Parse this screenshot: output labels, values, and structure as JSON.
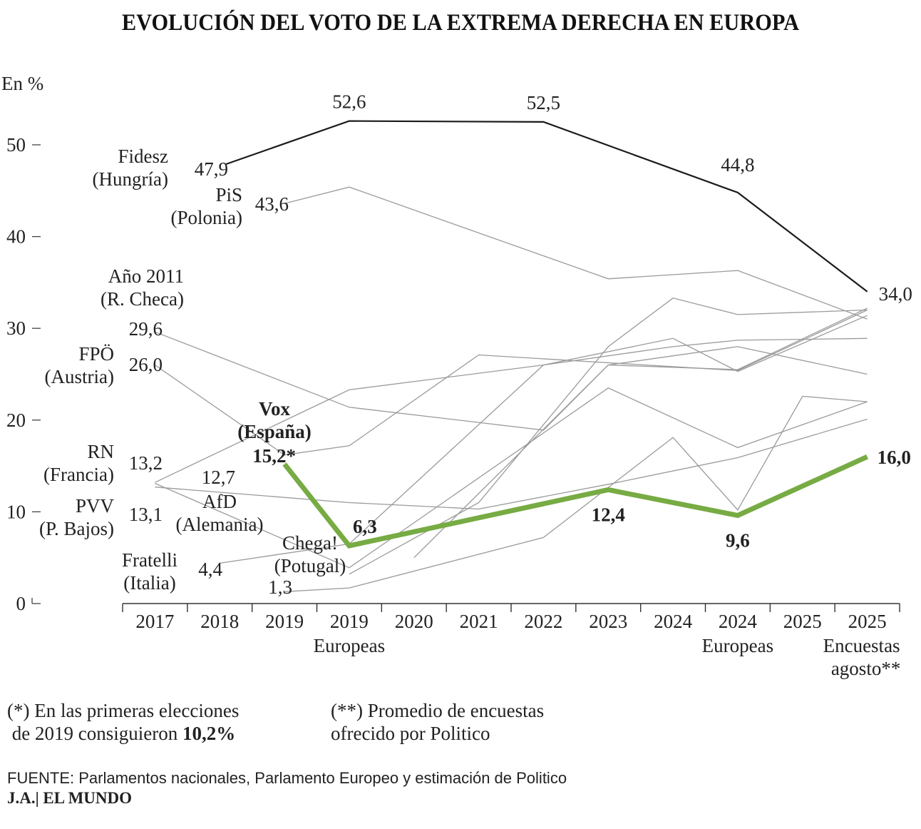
{
  "title": "EVOLUCIÓN DEL VOTO DE LA EXTREMA DERECHA EN EUROPA",
  "colors": {
    "highlight": "#77ab43",
    "main_line": "#1a1a1a",
    "other_lines": "#9a9a9a",
    "text": "#222222"
  },
  "chart_data": {
    "type": "line",
    "ylabel": "En %",
    "ylim": [
      0,
      55
    ],
    "yticks": [
      "0",
      "10",
      "20",
      "30",
      "40",
      "50"
    ],
    "categories": [
      {
        "label": "2017",
        "sub": ""
      },
      {
        "label": "2018",
        "sub": ""
      },
      {
        "label": "2019",
        "sub": ""
      },
      {
        "label": "2019",
        "sub": "Europeas"
      },
      {
        "label": "2020",
        "sub": ""
      },
      {
        "label": "2021",
        "sub": ""
      },
      {
        "label": "2022",
        "sub": ""
      },
      {
        "label": "2023",
        "sub": ""
      },
      {
        "label": "2024",
        "sub": ""
      },
      {
        "label": "2024",
        "sub": "Europeas"
      },
      {
        "label": "2025",
        "sub": ""
      },
      {
        "label": "2025",
        "sub": "Encuestas agosto**"
      }
    ],
    "series": [
      {
        "name": "Fidesz (Hungría)",
        "name_lines": [
          "Fidesz",
          "(Hungría)"
        ],
        "style": "main",
        "points": [
          [
            1.6,
            47.9
          ],
          [
            3.5,
            52.6
          ],
          [
            6.5,
            52.5
          ],
          [
            9.5,
            44.8
          ],
          [
            11.5,
            34.0
          ]
        ],
        "start_label": "47,9",
        "value_labels": [
          {
            "i": 1,
            "text": "52,6"
          },
          {
            "i": 2,
            "text": "52,5"
          },
          {
            "i": 3,
            "text": "44,8"
          },
          {
            "i": 4,
            "text": "34,0"
          }
        ]
      },
      {
        "name": "PiS (Polonia)",
        "name_lines": [
          "PiS",
          "(Polonia)"
        ],
        "style": "other",
        "points": [
          [
            2.5,
            43.6
          ],
          [
            3.5,
            45.4
          ],
          [
            7.5,
            35.4
          ],
          [
            9.5,
            36.3
          ],
          [
            11.5,
            31.0
          ]
        ],
        "start_label": "43,6"
      },
      {
        "name": "Año 2011 (R. Checa)",
        "name_lines": [
          "Año 2011",
          "(R. Checa)"
        ],
        "style": "other",
        "points": [
          [
            0.5,
            29.6
          ],
          [
            3.5,
            21.4
          ],
          [
            6.5,
            18.9
          ],
          [
            7.5,
            26.0
          ],
          [
            9.5,
            25.5
          ],
          [
            11.5,
            32.2
          ]
        ],
        "start_label": "29,6"
      },
      {
        "name": "FPÖ (Austria)",
        "name_lines": [
          "FPÖ",
          "(Austria)"
        ],
        "style": "other",
        "points": [
          [
            0.5,
            26.0
          ],
          [
            2.5,
            16.2
          ],
          [
            3.5,
            17.2
          ],
          [
            5.5,
            27.1
          ],
          [
            9.5,
            25.4
          ],
          [
            11.5,
            32.0
          ]
        ],
        "start_label": "26,0"
      },
      {
        "name": "RN (Francia)",
        "name_lines": [
          "RN",
          "(Francia)"
        ],
        "style": "other",
        "points": [
          [
            0.5,
            13.2
          ],
          [
            3.5,
            23.3
          ],
          [
            6.5,
            26.0
          ],
          [
            8.5,
            28.9
          ],
          [
            9.5,
            25.3
          ],
          [
            11.5,
            31.4
          ]
        ],
        "start_label": "13,2"
      },
      {
        "name": "PVV (P. Bajos)",
        "name_lines": [
          "PVV",
          "(P. Bajos)"
        ],
        "style": "other",
        "points": [
          [
            0.5,
            13.1
          ],
          [
            3.5,
            3.9
          ],
          [
            7.5,
            23.5
          ],
          [
            9.5,
            17.0
          ],
          [
            11.5,
            22.0
          ]
        ],
        "start_label": "13,1"
      },
      {
        "name": "AfD (Alemania)",
        "name_lines": [
          "AfD",
          "(Alemania)"
        ],
        "style": "other",
        "points": [
          [
            0.5,
            12.7
          ],
          [
            3.5,
            11.0
          ],
          [
            5.5,
            10.3
          ],
          [
            7.5,
            13.0
          ],
          [
            9.5,
            15.9
          ],
          [
            11.5,
            20.1
          ]
        ],
        "start_label": "12,7"
      },
      {
        "name": "Fratelli (Italia)",
        "name_lines": [
          "Fratelli",
          "(Italia)"
        ],
        "style": "other",
        "points": [
          [
            1.5,
            4.4
          ],
          [
            3.5,
            6.5
          ],
          [
            6.5,
            26.0
          ],
          [
            8.5,
            28.0
          ],
          [
            9.5,
            28.7
          ],
          [
            11.5,
            28.9
          ]
        ],
        "start_label": "4,4"
      },
      {
        "name": "Chega! (Potugal)",
        "name_lines": [
          "Chega!",
          "(Potugal)"
        ],
        "style": "other",
        "points": [
          [
            2.5,
            1.3
          ],
          [
            3.5,
            1.7
          ],
          [
            6.5,
            7.2
          ],
          [
            8.5,
            18.1
          ],
          [
            9.5,
            10.2
          ],
          [
            10.5,
            22.6
          ],
          [
            11.5,
            22.0
          ]
        ],
        "start_label": "1,3"
      },
      {
        "name": "Vox (España)",
        "name_lines": [
          "Vox",
          "(España)"
        ],
        "style": "highlight",
        "points": [
          [
            2.5,
            15.2
          ],
          [
            3.5,
            6.3
          ],
          [
            7.5,
            12.4
          ],
          [
            9.5,
            9.6
          ],
          [
            11.5,
            16.0
          ]
        ],
        "start_label": "15,2*",
        "value_labels": [
          {
            "i": 1,
            "text": "6,3"
          },
          {
            "i": 2,
            "text": "12,4"
          },
          {
            "i": 3,
            "text": "9,6"
          },
          {
            "i": 4,
            "text": "16,0"
          }
        ]
      },
      {
        "name": "",
        "name_lines": [],
        "style": "other",
        "points": [
          [
            3.5,
            3.2
          ],
          [
            5.5,
            11.0
          ],
          [
            7.5,
            28.0
          ],
          [
            8.5,
            33.3
          ],
          [
            9.5,
            31.5
          ],
          [
            11.5,
            32.0
          ]
        ]
      },
      {
        "name": "",
        "name_lines": [],
        "style": "other",
        "points": [
          [
            4.5,
            5.0
          ],
          [
            7.5,
            26.0
          ],
          [
            9.5,
            28.0
          ],
          [
            11.5,
            25.0
          ]
        ]
      }
    ]
  },
  "notes": {
    "note1_line1": "(*) En las primeras elecciones",
    "note1_line2_prefix": "de 2019  consiguieron ",
    "note1_line2_bold": "10,2%",
    "note2_line1": "(**) Promedio de encuestas",
    "note2_line2": "ofrecido por Politico"
  },
  "source": {
    "label": "FUENTE:",
    "text": " Parlamentos nacionales, Parlamento Europeo y estimación de Politico",
    "credit": "J.A.| EL MUNDO"
  }
}
